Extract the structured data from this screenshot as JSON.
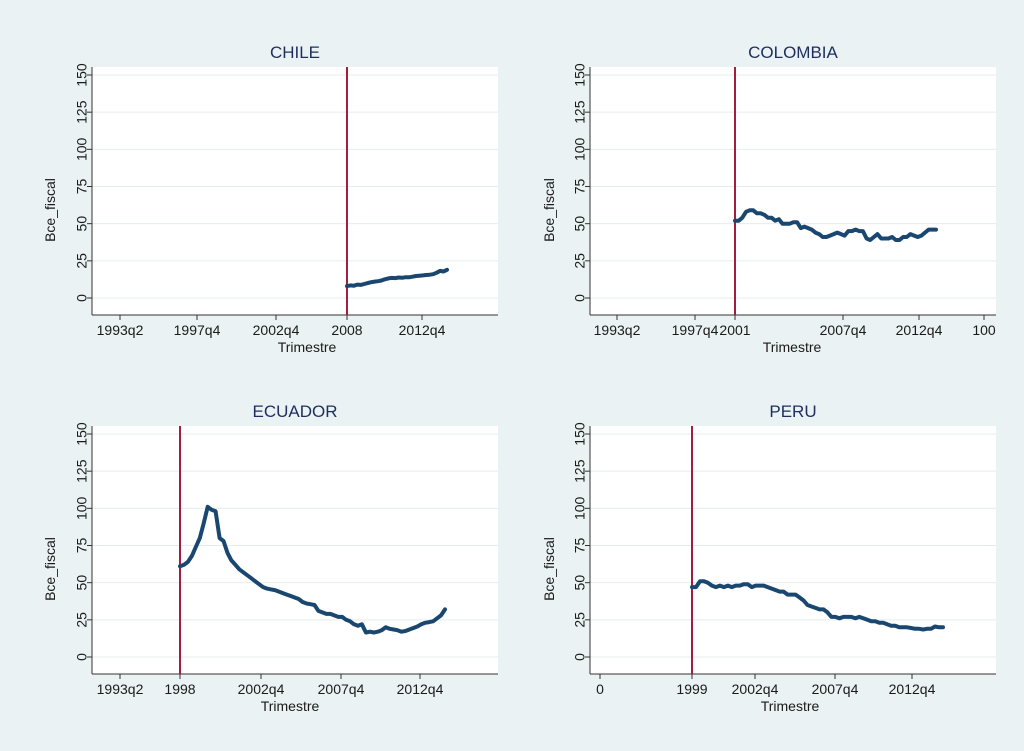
{
  "colors": {
    "background": "#eaf2f3",
    "plot_background": "#ffffff",
    "grid": "#e6ecee",
    "series": "#1a476f",
    "vline": "#a31d3f",
    "title": "#1e2e5e"
  },
  "chart_data": [
    {
      "type": "line",
      "title": "CHILE",
      "xlabel": "Trimestre",
      "ylabel": "Bce_fiscal",
      "ylim": [
        0,
        150
      ],
      "yticks": [
        "0",
        "25",
        "50",
        "75",
        "100",
        "125",
        "150"
      ],
      "x_tick_labels": [
        "1993q2",
        "1997q4",
        "2002q4",
        "2008",
        "2012q4"
      ],
      "vline_label": "2008",
      "series": [
        {
          "x": [
            2008.0,
            2008.25,
            2008.5,
            2008.75,
            2009.0,
            2009.25,
            2009.5,
            2009.75,
            2010.0,
            2010.25,
            2010.5,
            2010.75,
            2011.0,
            2011.25,
            2011.5,
            2011.75,
            2012.0,
            2012.25,
            2012.5,
            2012.75,
            2013.0,
            2013.25,
            2013.5,
            2013.75,
            2014.0,
            2014.25,
            2014.5,
            2014.75,
            2015.0,
            2015.25
          ],
          "values": [
            8,
            8.5,
            8.3,
            9,
            8.8,
            9.4,
            10,
            10.6,
            11,
            11.3,
            11.8,
            12.6,
            13.2,
            13.5,
            13.4,
            13.8,
            13.6,
            14,
            13.9,
            14.3,
            14.8,
            15,
            15.2,
            15.5,
            15.7,
            16,
            17,
            18.2,
            17.8,
            19
          ]
        }
      ]
    },
    {
      "type": "line",
      "title": "COLOMBIA",
      "xlabel": "Trimestre",
      "ylabel": "Bce_fiscal",
      "ylim": [
        0,
        150
      ],
      "yticks": [
        "0",
        "25",
        "50",
        "75",
        "100",
        "125",
        "150"
      ],
      "x_tick_labels": [
        "1993q2",
        "1997q4",
        "2001",
        "2007q4",
        "2012q4",
        "100"
      ],
      "vline_label": "2001",
      "series": [
        {
          "x": [
            2001.0,
            2001.25,
            2001.5,
            2001.75,
            2002.0,
            2002.25,
            2002.5,
            2002.75,
            2003.0,
            2003.25,
            2003.5,
            2003.75,
            2004.0,
            2004.25,
            2004.5,
            2004.75,
            2005.0,
            2005.25,
            2005.5,
            2005.75,
            2006.0,
            2006.25,
            2006.5,
            2006.75,
            2007.0,
            2007.25,
            2007.5,
            2007.75,
            2008.0,
            2008.25,
            2008.5,
            2008.75,
            2009.0,
            2009.25,
            2009.5,
            2009.75,
            2010.0,
            2010.25,
            2010.5,
            2010.75,
            2011.0,
            2011.25,
            2011.5,
            2011.75,
            2012.0,
            2012.25,
            2012.5,
            2012.75,
            2013.0,
            2013.25,
            2013.5,
            2013.75,
            2014.0,
            2014.25,
            2014.5,
            2014.75
          ],
          "values": [
            52,
            52,
            54,
            58,
            59,
            59,
            57,
            57,
            56,
            54,
            54,
            52,
            53,
            50,
            50,
            50,
            51,
            51,
            47,
            48,
            47,
            46,
            44,
            43,
            41,
            41,
            42,
            43,
            44,
            43,
            42,
            45,
            45,
            46,
            45,
            45,
            40,
            39,
            41,
            43,
            40,
            40,
            40,
            41,
            39,
            39,
            41,
            41,
            43,
            42,
            41,
            42,
            44,
            46,
            46,
            46
          ]
        }
      ]
    },
    {
      "type": "line",
      "title": "ECUADOR",
      "xlabel": "Trimestre",
      "ylabel": "Bce_fiscal",
      "ylim": [
        0,
        150
      ],
      "yticks": [
        "0",
        "25",
        "50",
        "75",
        "100",
        "125",
        "150"
      ],
      "x_tick_labels": [
        "1993q2",
        "1998",
        "2002q4",
        "2007q4",
        "2012q4"
      ],
      "vline_label": "1998",
      "series": [
        {
          "x": [
            1998.0,
            1998.25,
            1998.5,
            1998.75,
            1999.0,
            1999.25,
            1999.5,
            1999.75,
            2000.0,
            2000.25,
            2000.5,
            2000.75,
            2001.0,
            2001.25,
            2001.5,
            2001.75,
            2002.0,
            2002.25,
            2002.5,
            2002.75,
            2003.0,
            2003.25,
            2003.5,
            2003.75,
            2004.0,
            2004.25,
            2004.5,
            2004.75,
            2005.0,
            2005.25,
            2005.5,
            2005.75,
            2006.0,
            2006.25,
            2006.5,
            2006.75,
            2007.0,
            2007.25,
            2007.5,
            2007.75,
            2008.0,
            2008.25,
            2008.5,
            2008.75,
            2009.0,
            2009.25,
            2009.5,
            2009.75,
            2010.0,
            2010.25,
            2010.5,
            2010.75,
            2011.0,
            2011.25,
            2011.5,
            2011.75,
            2012.0,
            2012.25,
            2012.5,
            2012.75,
            2013.0,
            2013.25,
            2013.5,
            2013.75,
            2014.0,
            2014.25,
            2014.5,
            2014.75
          ],
          "values": [
            61,
            62,
            64,
            68,
            74,
            80,
            90,
            101,
            99,
            98,
            80,
            78,
            70,
            65,
            62,
            59,
            57,
            55,
            53,
            51,
            49,
            47,
            46,
            45.5,
            45,
            44,
            43,
            42,
            41,
            40,
            39,
            37,
            36,
            35.5,
            35,
            31,
            30,
            29,
            29,
            28,
            27,
            27,
            25,
            24,
            22,
            21,
            22,
            16.5,
            17,
            16.5,
            17,
            18,
            20,
            19,
            18.5,
            18,
            17,
            17.5,
            18.5,
            19.5,
            20.5,
            22,
            23,
            23.5,
            24,
            26,
            28,
            32
          ]
        }
      ]
    },
    {
      "type": "line",
      "title": "PERU",
      "xlabel": "Trimestre",
      "ylabel": "Bce_fiscal",
      "ylim": [
        0,
        150
      ],
      "yticks": [
        "0",
        "25",
        "50",
        "75",
        "100",
        "125",
        "150"
      ],
      "x_tick_labels": [
        "0",
        "1999",
        "2002q4",
        "2007q4",
        "2012q4"
      ],
      "vline_label": "1999",
      "series": [
        {
          "x": [
            1999.0,
            1999.25,
            1999.5,
            1999.75,
            2000.0,
            2000.25,
            2000.5,
            2000.75,
            2001.0,
            2001.25,
            2001.5,
            2001.75,
            2002.0,
            2002.25,
            2002.5,
            2002.75,
            2003.0,
            2003.25,
            2003.5,
            2003.75,
            2004.0,
            2004.25,
            2004.5,
            2004.75,
            2005.0,
            2005.25,
            2005.5,
            2005.75,
            2006.0,
            2006.25,
            2006.5,
            2006.75,
            2007.0,
            2007.25,
            2007.5,
            2007.75,
            2008.0,
            2008.25,
            2008.5,
            2008.75,
            2009.0,
            2009.25,
            2009.5,
            2009.75,
            2010.0,
            2010.25,
            2010.5,
            2010.75,
            2011.0,
            2011.25,
            2011.5,
            2011.75,
            2012.0,
            2012.25,
            2012.5,
            2012.75,
            2013.0,
            2013.25,
            2013.5,
            2013.75,
            2014.0,
            2014.25,
            2014.5,
            2014.75
          ],
          "values": [
            47,
            47,
            51,
            51,
            50,
            48,
            47,
            48,
            47,
            48,
            47,
            48,
            48,
            49,
            49,
            47,
            48,
            48,
            48,
            47,
            46,
            45,
            44,
            44,
            42,
            42,
            42,
            40,
            38,
            35,
            34,
            33,
            32,
            32,
            30,
            27,
            27,
            26,
            27,
            27,
            27,
            26,
            27,
            26,
            25,
            24,
            24,
            23,
            23,
            22,
            21,
            21,
            20,
            20,
            20,
            19.5,
            19,
            19,
            18.5,
            19,
            19,
            20.5,
            20,
            20
          ]
        }
      ]
    }
  ]
}
